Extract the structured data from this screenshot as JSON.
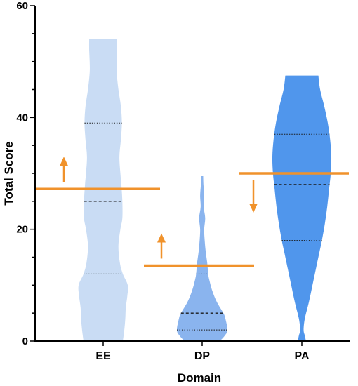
{
  "chart_data": {
    "type": "violin",
    "title": "",
    "xlabel": "Domain",
    "ylabel": "Total Score",
    "ylim": [
      0,
      60
    ],
    "yticks": [
      0,
      20,
      40,
      60
    ],
    "grid": false,
    "categories": [
      "EE",
      "DP",
      "PA"
    ],
    "series": [
      {
        "category": "EE",
        "color": "#c9dcf4",
        "min": 0,
        "max": 54,
        "q1": 12,
        "median": 25,
        "q3": 39,
        "density": [
          [
            0,
            0.8
          ],
          [
            2,
            0.86
          ],
          [
            4,
            0.9
          ],
          [
            6,
            0.92
          ],
          [
            8,
            0.98
          ],
          [
            10,
            1.0
          ],
          [
            12,
            0.8
          ],
          [
            14,
            0.68
          ],
          [
            17,
            0.62
          ],
          [
            20,
            0.7
          ],
          [
            22,
            0.78
          ],
          [
            25,
            0.78
          ],
          [
            28,
            0.74
          ],
          [
            30,
            0.7
          ],
          [
            33,
            0.66
          ],
          [
            36,
            0.72
          ],
          [
            39,
            0.76
          ],
          [
            42,
            0.72
          ],
          [
            45,
            0.62
          ],
          [
            48,
            0.55
          ],
          [
            50,
            0.55
          ],
          [
            52,
            0.57
          ],
          [
            54,
            0.57
          ]
        ],
        "reference": {
          "value": 27.2,
          "direction": "up"
        }
      },
      {
        "category": "DP",
        "color": "#8ab4ee",
        "min": 0,
        "max": 29.5,
        "q1": 2,
        "median": 5,
        "q3": 12,
        "density": [
          [
            0,
            0.7
          ],
          [
            1,
            0.9
          ],
          [
            2,
            1.0
          ],
          [
            4,
            0.92
          ],
          [
            5,
            0.84
          ],
          [
            7,
            0.58
          ],
          [
            9,
            0.4
          ],
          [
            11,
            0.28
          ],
          [
            12,
            0.24
          ],
          [
            14,
            0.2
          ],
          [
            16,
            0.14
          ],
          [
            18,
            0.1
          ],
          [
            20,
            0.08
          ],
          [
            22,
            0.12
          ],
          [
            24,
            0.06
          ],
          [
            26,
            0.08
          ],
          [
            28,
            0.05
          ],
          [
            29.5,
            0.04
          ]
        ],
        "reference": {
          "value": 13.5,
          "direction": "up"
        }
      },
      {
        "category": "PA",
        "color": "#5096ec",
        "min": 0,
        "max": 47.5,
        "q1": 18,
        "median": 28,
        "q3": 37,
        "density": [
          [
            0,
            0.14
          ],
          [
            1,
            0.1
          ],
          [
            2,
            0.06
          ],
          [
            4,
            0.1
          ],
          [
            7,
            0.24
          ],
          [
            10,
            0.36
          ],
          [
            13,
            0.48
          ],
          [
            16,
            0.6
          ],
          [
            18,
            0.68
          ],
          [
            21,
            0.78
          ],
          [
            24,
            0.86
          ],
          [
            27,
            0.92
          ],
          [
            30,
            0.98
          ],
          [
            33,
            1.0
          ],
          [
            36,
            0.96
          ],
          [
            39,
            0.88
          ],
          [
            42,
            0.76
          ],
          [
            45,
            0.62
          ],
          [
            47.5,
            0.56
          ]
        ],
        "reference": {
          "value": 30,
          "direction": "down"
        }
      }
    ],
    "reference_color": "#f0922b"
  }
}
